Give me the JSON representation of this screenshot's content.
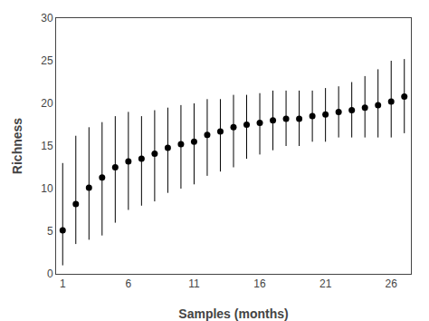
{
  "chart_data": {
    "type": "scatter",
    "x": [
      1,
      2,
      3,
      4,
      5,
      6,
      7,
      8,
      9,
      10,
      11,
      12,
      13,
      14,
      15,
      16,
      17,
      18,
      19,
      20,
      21,
      22,
      23,
      24,
      25,
      26,
      27
    ],
    "values": [
      5.1,
      8.2,
      10.1,
      11.3,
      12.5,
      13.2,
      13.5,
      14.1,
      14.8,
      15.2,
      15.5,
      16.3,
      16.7,
      17.2,
      17.5,
      17.7,
      18.0,
      18.2,
      18.2,
      18.5,
      18.7,
      19.0,
      19.2,
      19.5,
      19.8,
      20.2,
      20.8
    ],
    "y_upper": [
      13.0,
      16.2,
      17.2,
      17.8,
      18.5,
      19.0,
      18.5,
      19.2,
      19.5,
      19.8,
      20.0,
      20.5,
      20.5,
      21.0,
      21.0,
      21.2,
      21.5,
      21.5,
      21.5,
      21.5,
      21.8,
      22.0,
      22.5,
      23.2,
      24.0,
      25.0,
      25.2
    ],
    "y_lower": [
      1.0,
      3.5,
      4.0,
      4.5,
      6.0,
      7.5,
      8.0,
      8.5,
      9.5,
      10.0,
      10.5,
      11.5,
      12.0,
      12.5,
      13.5,
      14.0,
      14.5,
      15.0,
      15.0,
      15.5,
      15.5,
      16.0,
      16.0,
      16.0,
      16.0,
      16.0,
      16.5
    ],
    "xlabel": "Samples (months)",
    "ylabel": "Richness",
    "xlim": [
      0.5,
      27.5
    ],
    "ylim": [
      0,
      30
    ],
    "xticks": [
      1,
      6,
      11,
      16,
      21,
      26
    ],
    "yticks": [
      0,
      5,
      10,
      15,
      20,
      25,
      30
    ],
    "color": "#000000",
    "marker": "circle",
    "grid": false
  }
}
